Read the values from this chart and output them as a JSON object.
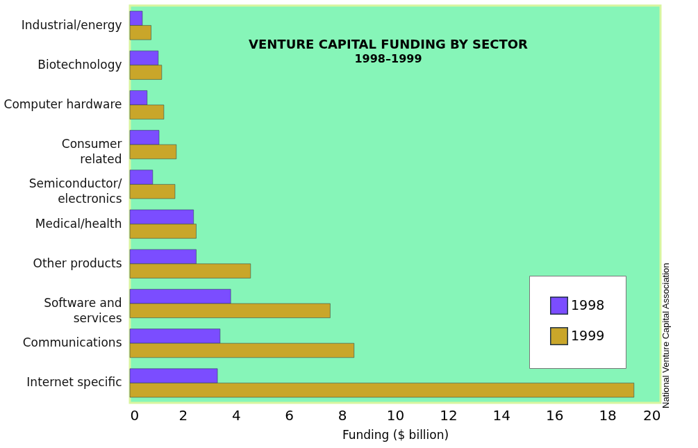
{
  "chart_data": {
    "type": "bar",
    "orientation": "horizontal",
    "title": "VENTURE CAPITAL FUNDING BY SECTOR",
    "subtitle": "1998–1999",
    "xlabel": "Funding ($ billion)",
    "categories": [
      "Industrial/energy",
      "Biotechnology",
      "Computer hardware",
      "Consumer\nrelated",
      "Semiconductor/\nelectronics",
      "Medical/health",
      "Other products",
      "Software and\nservices",
      "Communications",
      "Internet specific"
    ],
    "series": [
      {
        "name": "1998",
        "color": "#7b4dff",
        "values": [
          0.47,
          1.07,
          0.65,
          1.1,
          0.86,
          2.4,
          2.5,
          3.8,
          3.4,
          3.3
        ]
      },
      {
        "name": "1999",
        "color": "#c9a62a",
        "values": [
          0.8,
          1.2,
          1.28,
          1.75,
          1.7,
          2.5,
          4.55,
          7.55,
          8.45,
          19.0
        ]
      }
    ],
    "xlim": [
      0,
      20
    ],
    "xticks": [
      0,
      2,
      4,
      6,
      8,
      10,
      12,
      14,
      16,
      18,
      20
    ],
    "grid": false,
    "legend": "bottom right",
    "annotations": [
      "National Venture Capital Association"
    ]
  }
}
